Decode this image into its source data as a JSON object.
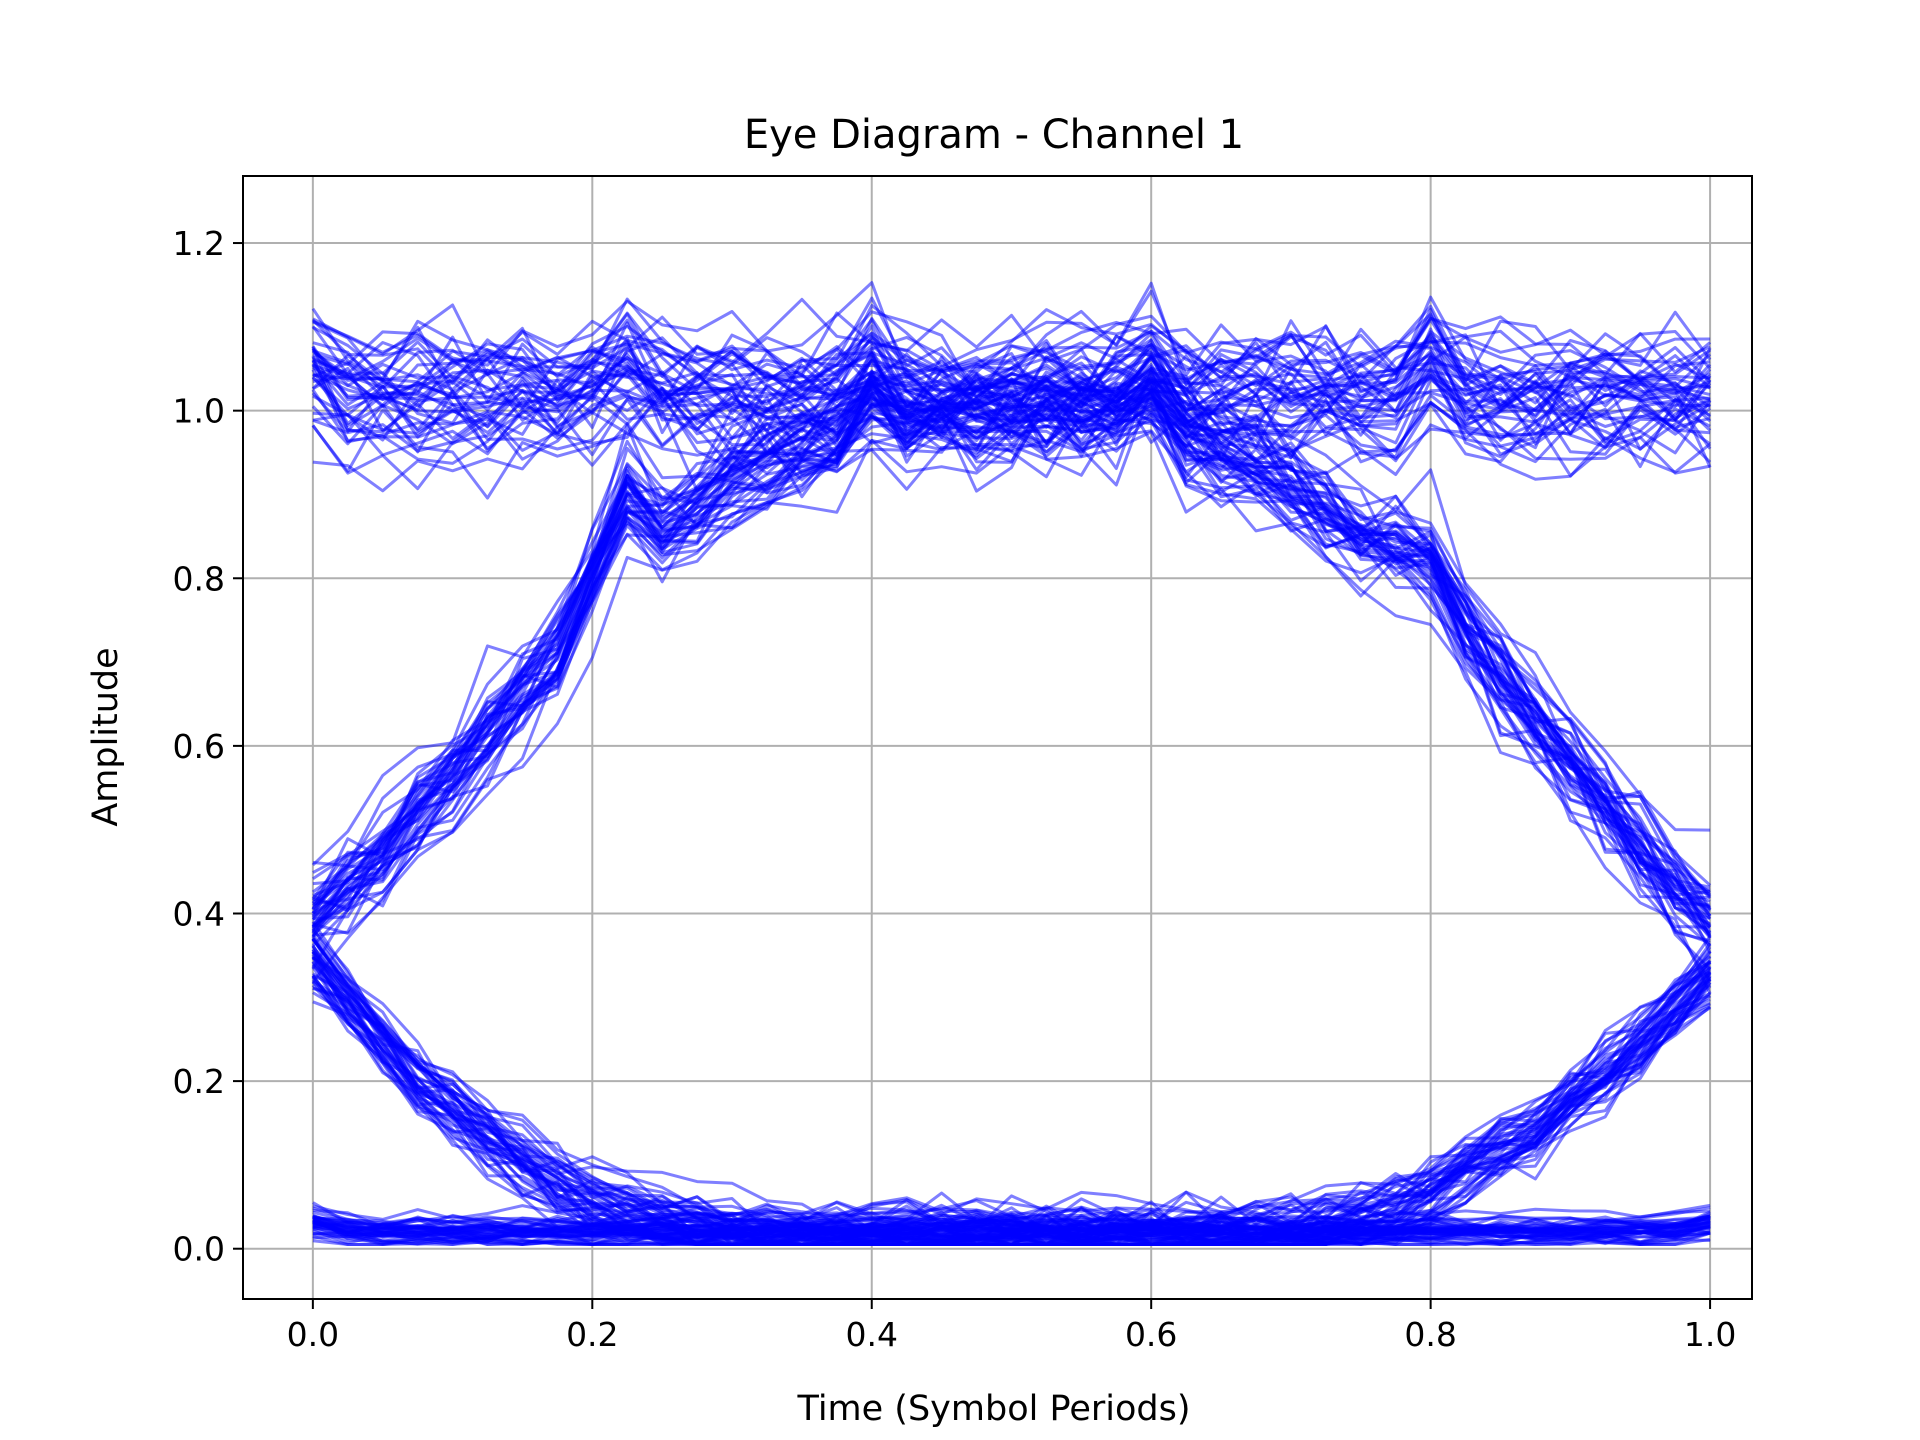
{
  "chart_data": {
    "type": "line",
    "title": "Eye Diagram - Channel 1",
    "xlabel": "Time (Symbol Periods)",
    "ylabel": "Amplitude",
    "xlim": [
      -0.05,
      1.03
    ],
    "ylim": [
      -0.06,
      1.28
    ],
    "xticks": [
      0.0,
      0.2,
      0.4,
      0.6,
      0.8,
      1.0
    ],
    "xtick_labels": [
      "0.0",
      "0.2",
      "0.4",
      "0.6",
      "0.8",
      "1.0"
    ],
    "yticks": [
      0.0,
      0.2,
      0.4,
      0.6,
      0.8,
      1.0,
      1.2
    ],
    "ytick_labels": [
      "0.0",
      "0.2",
      "0.4",
      "0.6",
      "0.8",
      "1.0",
      "1.2"
    ],
    "grid": true,
    "legend": "none",
    "trace_color": "#0000ff",
    "trace_opacity": 0.5,
    "samples_per_trace": 41,
    "x_step": 0.025,
    "families": [
      {
        "kind": "high-steady",
        "count": 45,
        "values": [
          1.05,
          1.02,
          1.02,
          1.02,
          1.02,
          1.02,
          1.02,
          1.02,
          1.03,
          1.05,
          1.03,
          1.02,
          1.02,
          1.02,
          1.02,
          1.02,
          1.05,
          1.02,
          1.02,
          1.02,
          1.02,
          1.02,
          1.02,
          1.03,
          1.05,
          1.02,
          1.02,
          1.02,
          1.02,
          1.02,
          1.02,
          1.02,
          1.06,
          1.02,
          1.02,
          1.02,
          1.02,
          1.02,
          1.02,
          1.02,
          1.02
        ],
        "spread": 0.04
      },
      {
        "kind": "low-steady",
        "count": 45,
        "values": [
          0.03,
          0.02,
          0.02,
          0.02,
          0.02,
          0.02,
          0.02,
          0.02,
          0.02,
          0.02,
          0.02,
          0.02,
          0.02,
          0.02,
          0.02,
          0.02,
          0.02,
          0.02,
          0.02,
          0.02,
          0.02,
          0.02,
          0.02,
          0.02,
          0.02,
          0.02,
          0.02,
          0.02,
          0.02,
          0.02,
          0.02,
          0.02,
          0.02,
          0.02,
          0.02,
          0.02,
          0.02,
          0.02,
          0.02,
          0.02,
          0.03
        ],
        "spread": 0.008
      },
      {
        "kind": "rise-fall",
        "count": 45,
        "values": [
          0.4,
          0.43,
          0.47,
          0.52,
          0.56,
          0.61,
          0.66,
          0.71,
          0.8,
          0.9,
          0.85,
          0.88,
          0.91,
          0.93,
          0.95,
          0.97,
          1.02,
          0.99,
          1.0,
          1.0,
          1.0,
          1.0,
          1.0,
          1.0,
          1.02,
          0.97,
          0.95,
          0.93,
          0.91,
          0.88,
          0.85,
          0.83,
          0.82,
          0.74,
          0.68,
          0.63,
          0.58,
          0.53,
          0.48,
          0.43,
          0.39
        ],
        "spread": 0.03
      },
      {
        "kind": "fall-rise",
        "count": 45,
        "values": [
          0.35,
          0.3,
          0.25,
          0.2,
          0.17,
          0.14,
          0.11,
          0.08,
          0.06,
          0.05,
          0.04,
          0.03,
          0.025,
          0.02,
          0.02,
          0.02,
          0.02,
          0.02,
          0.02,
          0.02,
          0.02,
          0.02,
          0.02,
          0.02,
          0.02,
          0.02,
          0.02,
          0.02,
          0.025,
          0.03,
          0.04,
          0.05,
          0.07,
          0.1,
          0.12,
          0.14,
          0.18,
          0.21,
          0.25,
          0.29,
          0.33
        ],
        "spread": 0.02
      }
    ]
  }
}
